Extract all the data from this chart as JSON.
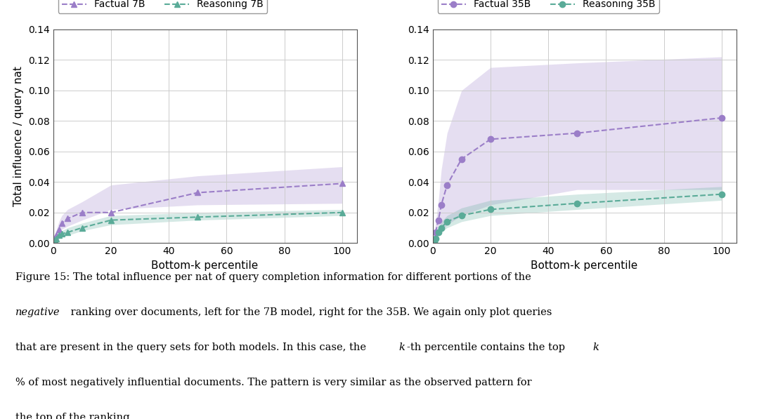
{
  "left": {
    "factual_x": [
      0.5,
      1,
      2,
      3,
      5,
      10,
      20,
      50,
      100
    ],
    "factual_y": [
      0.002,
      0.005,
      0.009,
      0.013,
      0.016,
      0.02,
      0.02,
      0.033,
      0.039
    ],
    "factual_y_low": [
      0.001,
      0.003,
      0.006,
      0.009,
      0.011,
      0.015,
      0.022,
      0.025,
      0.026
    ],
    "factual_y_high": [
      0.003,
      0.008,
      0.014,
      0.018,
      0.022,
      0.027,
      0.038,
      0.044,
      0.05
    ],
    "reasoning_x": [
      0.5,
      1,
      2,
      3,
      5,
      10,
      20,
      50,
      100
    ],
    "reasoning_y": [
      0.002,
      0.003,
      0.005,
      0.006,
      0.007,
      0.01,
      0.015,
      0.017,
      0.02
    ],
    "reasoning_y_low": [
      0.001,
      0.002,
      0.003,
      0.004,
      0.005,
      0.008,
      0.012,
      0.015,
      0.018
    ],
    "reasoning_y_high": [
      0.003,
      0.004,
      0.007,
      0.008,
      0.01,
      0.013,
      0.018,
      0.02,
      0.022
    ],
    "ylim": [
      0.0,
      0.14
    ],
    "yticks": [
      0.0,
      0.02,
      0.04,
      0.06,
      0.08,
      0.1,
      0.12,
      0.14
    ],
    "legend_label_factual": "Factual 7B",
    "legend_label_reasoning": "Reasoning 7B"
  },
  "right": {
    "factual_x": [
      0.5,
      1,
      2,
      3,
      5,
      10,
      20,
      50,
      100
    ],
    "factual_y": [
      0.002,
      0.007,
      0.015,
      0.025,
      0.038,
      0.055,
      0.068,
      0.072,
      0.082
    ],
    "factual_y_low": [
      0.001,
      0.003,
      0.005,
      0.008,
      0.012,
      0.018,
      0.025,
      0.035,
      0.035
    ],
    "factual_y_high": [
      0.004,
      0.013,
      0.028,
      0.048,
      0.072,
      0.1,
      0.115,
      0.118,
      0.122
    ],
    "reasoning_x": [
      0.5,
      1,
      2,
      3,
      5,
      10,
      20,
      50,
      100
    ],
    "reasoning_y": [
      0.001,
      0.003,
      0.007,
      0.01,
      0.014,
      0.018,
      0.022,
      0.026,
      0.032
    ],
    "reasoning_y_low": [
      0.001,
      0.002,
      0.005,
      0.007,
      0.01,
      0.014,
      0.018,
      0.022,
      0.028
    ],
    "reasoning_y_high": [
      0.002,
      0.005,
      0.01,
      0.014,
      0.018,
      0.023,
      0.028,
      0.032,
      0.037
    ],
    "ylim": [
      0.0,
      0.14
    ],
    "yticks": [
      0.0,
      0.02,
      0.04,
      0.06,
      0.08,
      0.1,
      0.12,
      0.14
    ],
    "legend_label_factual": "Factual 35B",
    "legend_label_reasoning": "Reasoning 35B"
  },
  "factual_color": "#9b7ec8",
  "reasoning_color": "#5aab98",
  "factual_fill_alpha": 0.25,
  "reasoning_fill_alpha": 0.25,
  "xlabel": "Bottom-k percentile",
  "ylabel": "Total influence / query nat",
  "xlim": [
    0,
    105
  ],
  "xticks": [
    0,
    20,
    40,
    60,
    80,
    100
  ],
  "caption_line1": "Figure 15: The total influence per nat of query completion information for different portions of the",
  "caption_line2_normal": " ranking over documents, left for the 7B model, right for the 35B. We again only plot queries",
  "caption_line2_italic": "negative",
  "caption_line3": "that are present in the query sets for both models. In this case, the ",
  "caption_line3b": "-th percentile contains the top ",
  "caption_line3c": "",
  "caption_line4": "% of most negatively influential documents. The pattern is very similar as the observed pattern for",
  "caption_line5": "the top of the ranking.",
  "bg_color": "#ffffff"
}
